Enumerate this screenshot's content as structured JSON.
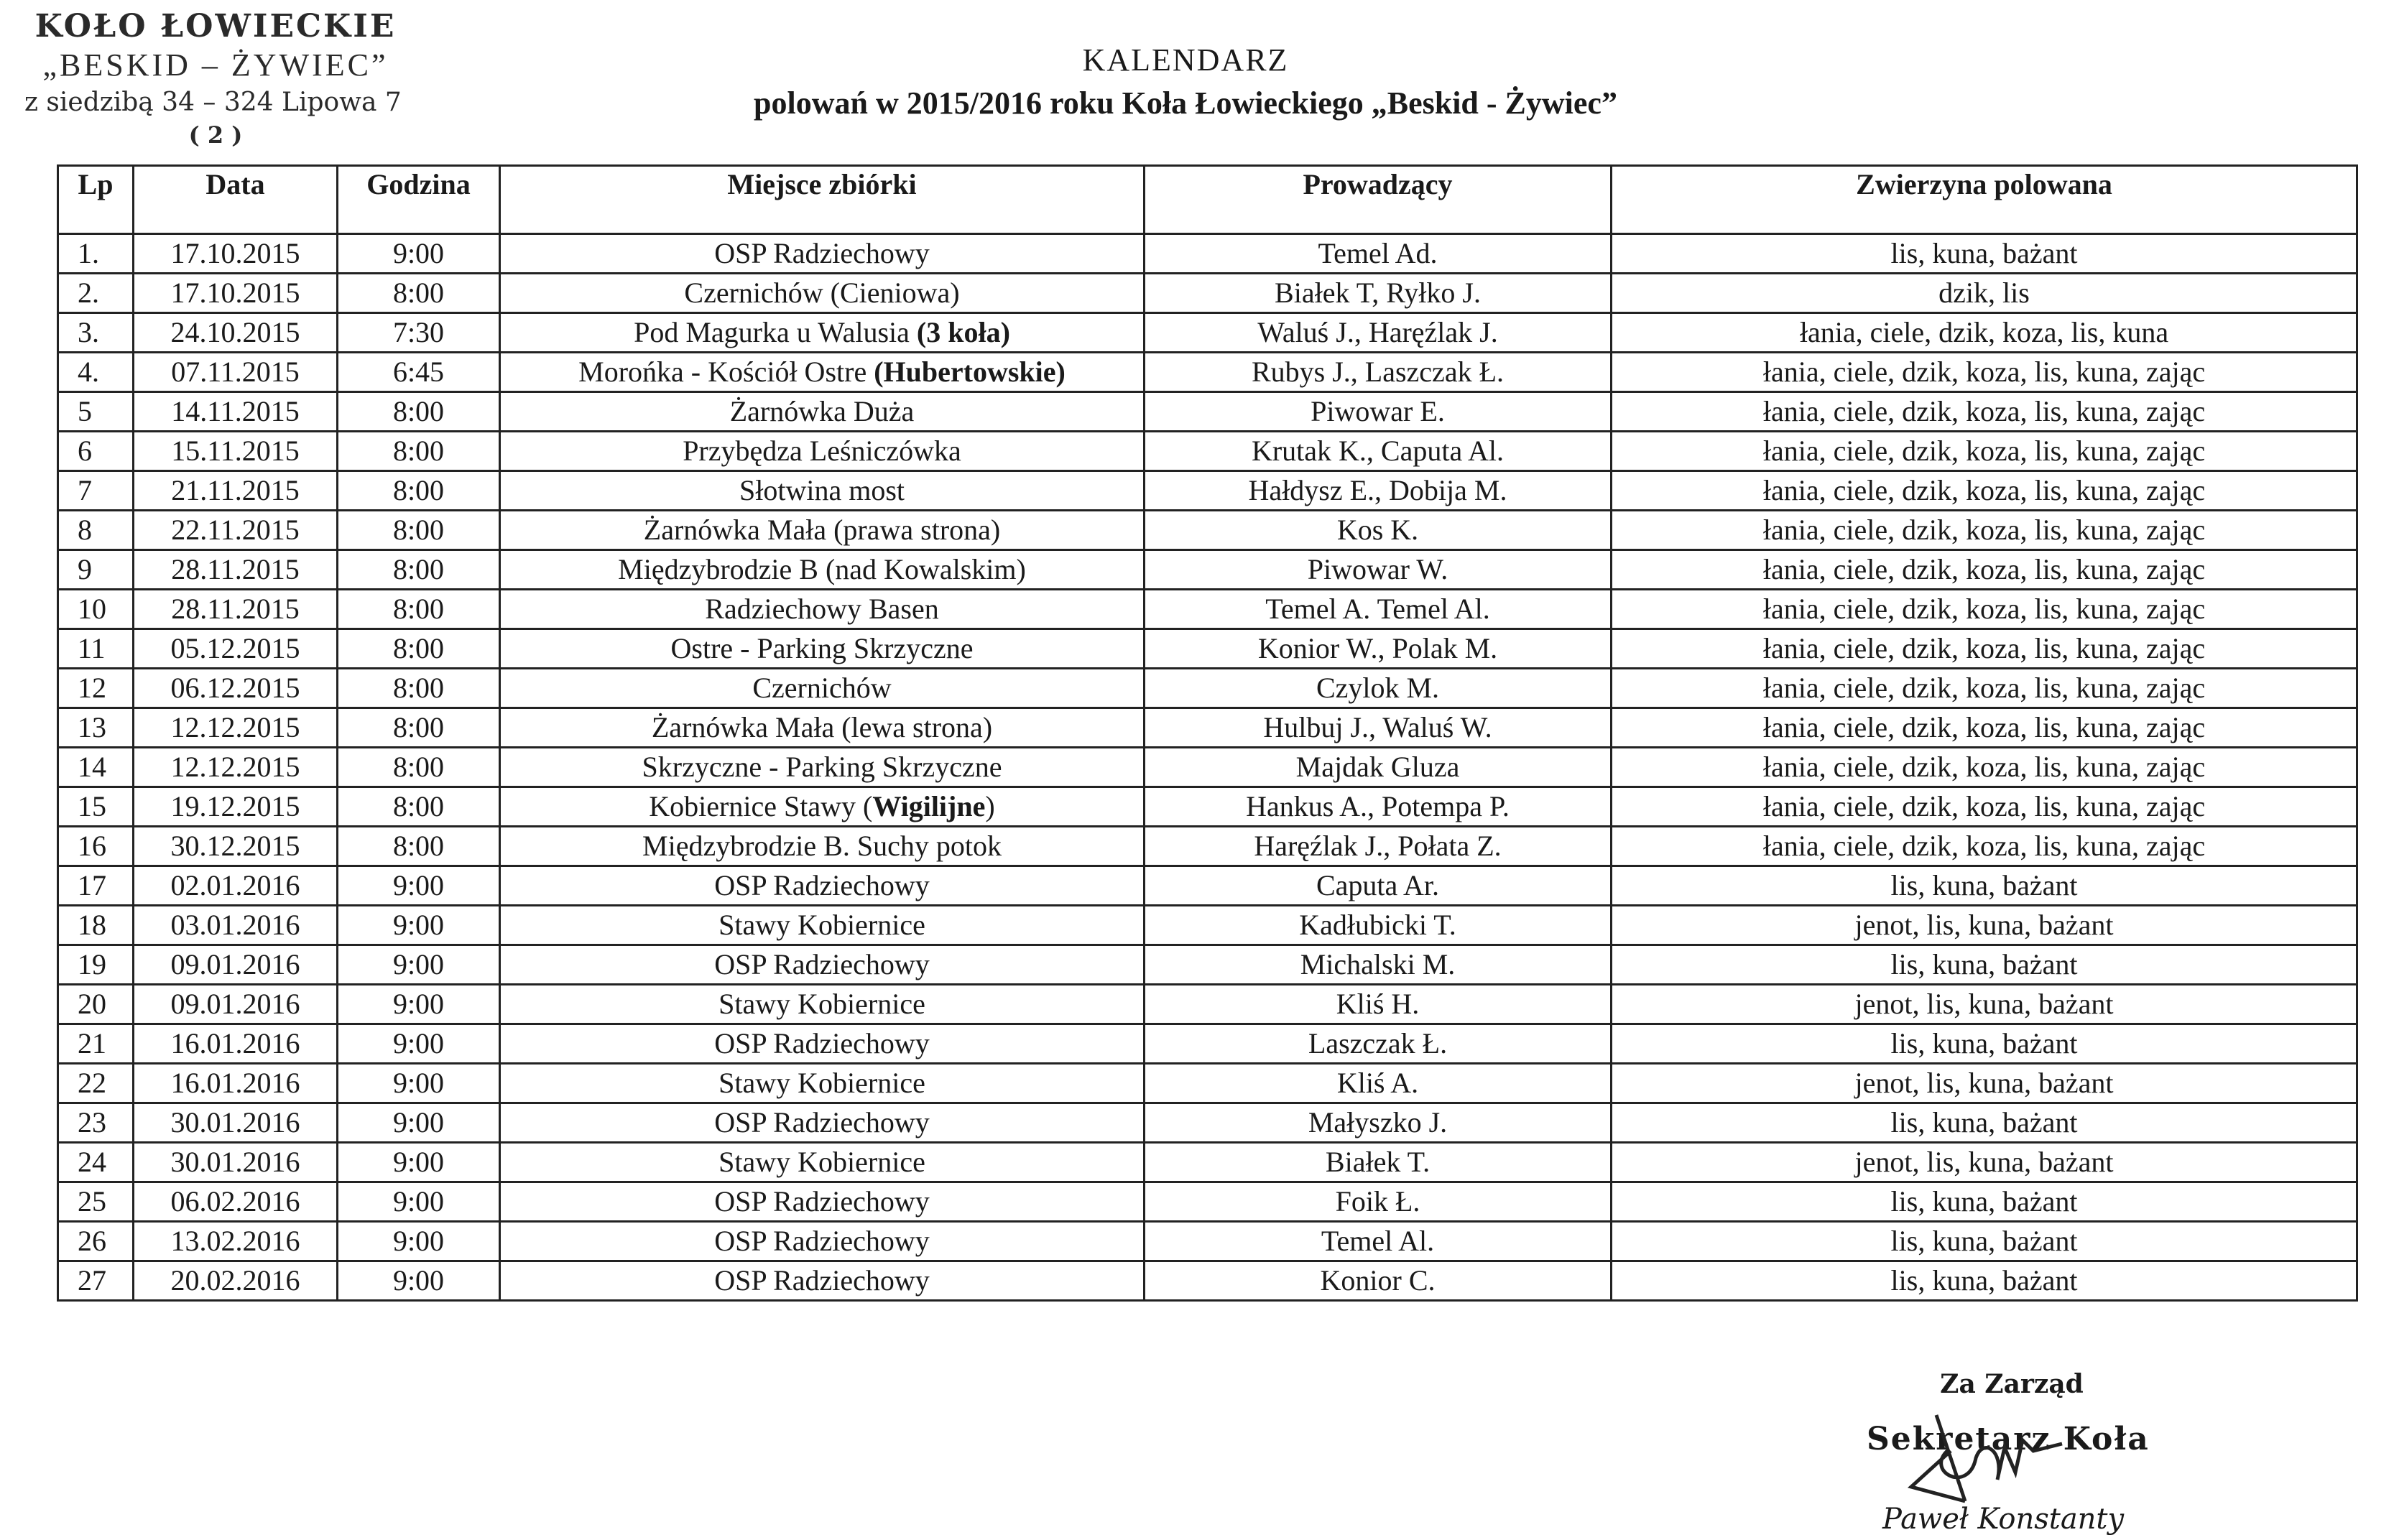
{
  "stamp": {
    "line1": "KOŁO ŁOWIECKIE",
    "line2": "„BESKID – ŻYWIEC”",
    "line3": "z siedzibą 34 – 324 Lipowa 7",
    "line4": "( 2 )"
  },
  "header": {
    "title": "KALENDARZ",
    "subtitle": "polowań w 2015/2016 roku Koła Łowieckiego „Beskid - Żywiec”"
  },
  "table": {
    "columns": [
      "Lp",
      "Data",
      "Godzina",
      "Miejsce zbiórki",
      "Prowadzący",
      "Zwierzyna polowana"
    ],
    "rows": [
      {
        "lp": "1.",
        "date": "17.10.2015",
        "time": "9:00",
        "place": "OSP Radziechowy",
        "place_bold": "",
        "place_after": "",
        "leader": "Temel Ad.",
        "game": "lis, kuna, bażant"
      },
      {
        "lp": "2.",
        "date": "17.10.2015",
        "time": "8:00",
        "place": "Czernichów (Cieniowa)",
        "place_bold": "",
        "place_after": "",
        "leader": "Białek T, Ryłko J.",
        "game": "dzik, lis"
      },
      {
        "lp": "3.",
        "date": "24.10.2015",
        "time": "7:30",
        "place": "Pod Magurka u Walusia  ",
        "place_bold": "(3 koła)",
        "place_after": "",
        "leader": "Waluś J., Haręźlak J.",
        "game": "łania, ciele, dzik, koza, lis, kuna"
      },
      {
        "lp": "4.",
        "date": "07.11.2015",
        "time": "6:45",
        "place": "Morońka - Kościół Ostre ",
        "place_bold": "(Hubertowskie)",
        "place_after": "",
        "leader": "Rubys J., Laszczak Ł.",
        "game": "łania, ciele, dzik, koza, lis, kuna, zając"
      },
      {
        "lp": "5",
        "date": "14.11.2015",
        "time": "8:00",
        "place": "Żarnówka Duża",
        "place_bold": "",
        "place_after": "",
        "leader": "Piwowar E.",
        "game": "łania, ciele, dzik, koza, lis, kuna, zając"
      },
      {
        "lp": "6",
        "date": "15.11.2015",
        "time": "8:00",
        "place": "Przybędza Leśniczówka",
        "place_bold": "",
        "place_after": "",
        "leader": "Krutak K., Caputa Al.",
        "game": "łania, ciele, dzik, koza, lis, kuna, zając"
      },
      {
        "lp": "7",
        "date": "21.11.2015",
        "time": "8:00",
        "place": "Słotwina most",
        "place_bold": "",
        "place_after": "",
        "leader": "Hałdysz E., Dobija M.",
        "game": "łania, ciele, dzik, koza, lis, kuna, zając"
      },
      {
        "lp": "8",
        "date": "22.11.2015",
        "time": "8:00",
        "place": "Żarnówka Mała (prawa strona)",
        "place_bold": "",
        "place_after": "",
        "leader": "Kos K.",
        "game": "łania, ciele, dzik, koza, lis, kuna, zając"
      },
      {
        "lp": "9",
        "date": "28.11.2015",
        "time": "8:00",
        "place": "Międzybrodzie B (nad Kowalskim)",
        "place_bold": "",
        "place_after": "",
        "leader": "Piwowar W.",
        "game": "łania, ciele, dzik, koza, lis, kuna, zając"
      },
      {
        "lp": "10",
        "date": "28.11.2015",
        "time": "8:00",
        "place": "Radziechowy Basen",
        "place_bold": "",
        "place_after": "",
        "leader": "Temel A. Temel Al.",
        "game": "łania, ciele, dzik, koza, lis, kuna, zając"
      },
      {
        "lp": "11",
        "date": "05.12.2015",
        "time": "8:00",
        "place": "Ostre  - Parking Skrzyczne",
        "place_bold": "",
        "place_after": "",
        "leader": "Konior W., Polak M.",
        "game": "łania, ciele, dzik, koza, lis, kuna, zając"
      },
      {
        "lp": "12",
        "date": "06.12.2015",
        "time": "8:00",
        "place": "Czernichów",
        "place_bold": "",
        "place_after": "",
        "leader": "Czylok M.",
        "game": "łania, ciele, dzik, koza, lis, kuna, zając"
      },
      {
        "lp": "13",
        "date": "12.12.2015",
        "time": "8:00",
        "place": "Żarnówka Mała (lewa strona)",
        "place_bold": "",
        "place_after": "",
        "leader": "Hulbuj J., Waluś W.",
        "game": "łania, ciele, dzik, koza, lis, kuna, zając"
      },
      {
        "lp": "14",
        "date": "12.12.2015",
        "time": "8:00",
        "place": "Skrzyczne - Parking Skrzyczne",
        "place_bold": "",
        "place_after": "",
        "leader": "Majdak Gluza",
        "game": "łania, ciele, dzik, koza, lis, kuna, zając"
      },
      {
        "lp": "15",
        "date": "19.12.2015",
        "time": "8:00",
        "place": "Kobiernice Stawy (",
        "place_bold": "Wigilijne",
        "place_after": ")",
        "leader": "Hankus A., Potempa P.",
        "game": "łania, ciele, dzik, koza, lis, kuna, zając"
      },
      {
        "lp": "16",
        "date": "30.12.2015",
        "time": "8:00",
        "place": "Międzybrodzie B. Suchy potok",
        "place_bold": "",
        "place_after": "",
        "leader": "Haręźlak J., Połata Z.",
        "game": "łania, ciele, dzik, koza, lis, kuna, zając"
      },
      {
        "lp": "17",
        "date": "02.01.2016",
        "time": "9:00",
        "place": "OSP Radziechowy",
        "place_bold": "",
        "place_after": "",
        "leader": "Caputa Ar.",
        "game": "lis, kuna, bażant"
      },
      {
        "lp": "18",
        "date": "03.01.2016",
        "time": "9:00",
        "place": "Stawy Kobiernice",
        "place_bold": "",
        "place_after": "",
        "leader": "Kadłubicki T.",
        "game": "jenot, lis, kuna, bażant"
      },
      {
        "lp": "19",
        "date": "09.01.2016",
        "time": "9:00",
        "place": "OSP Radziechowy",
        "place_bold": "",
        "place_after": "",
        "leader": "Michalski M.",
        "game": "lis, kuna, bażant"
      },
      {
        "lp": "20",
        "date": "09.01.2016",
        "time": "9:00",
        "place": "Stawy Kobiernice",
        "place_bold": "",
        "place_after": "",
        "leader": "Kliś H.",
        "game": "jenot, lis, kuna, bażant"
      },
      {
        "lp": "21",
        "date": "16.01.2016",
        "time": "9:00",
        "place": "OSP Radziechowy",
        "place_bold": "",
        "place_after": "",
        "leader": "Laszczak Ł.",
        "game": "lis, kuna, bażant"
      },
      {
        "lp": "22",
        "date": "16.01.2016",
        "time": "9:00",
        "place": "Stawy Kobiernice",
        "place_bold": "",
        "place_after": "",
        "leader": "Kliś A.",
        "game": "jenot, lis, kuna, bażant"
      },
      {
        "lp": "23",
        "date": "30.01.2016",
        "time": "9:00",
        "place": "OSP Radziechowy",
        "place_bold": "",
        "place_after": "",
        "leader": "Małyszko J.",
        "game": "lis, kuna, bażant"
      },
      {
        "lp": "24",
        "date": "30.01.2016",
        "time": "9:00",
        "place": "Stawy Kobiernice",
        "place_bold": "",
        "place_after": "",
        "leader": "Białek T.",
        "game": "jenot, lis, kuna, bażant"
      },
      {
        "lp": "25",
        "date": "06.02.2016",
        "time": "9:00",
        "place": "OSP Radziechowy",
        "place_bold": "",
        "place_after": "",
        "leader": "Foik Ł.",
        "game": "lis, kuna, bażant"
      },
      {
        "lp": "26",
        "date": "13.02.2016",
        "time": "9:00",
        "place": "OSP Radziechowy",
        "place_bold": "",
        "place_after": "",
        "leader": "Temel Al.",
        "game": "lis, kuna, bażant"
      },
      {
        "lp": "27",
        "date": "20.02.2016",
        "time": "9:00",
        "place": "OSP Radziechowy",
        "place_bold": "",
        "place_after": "",
        "leader": "Konior C.",
        "game": "lis, kuna, bażant"
      }
    ]
  },
  "signature": {
    "on_behalf": "Za Zarząd",
    "role": "Sekretarz Koła",
    "name": "Paweł Konstanty"
  }
}
